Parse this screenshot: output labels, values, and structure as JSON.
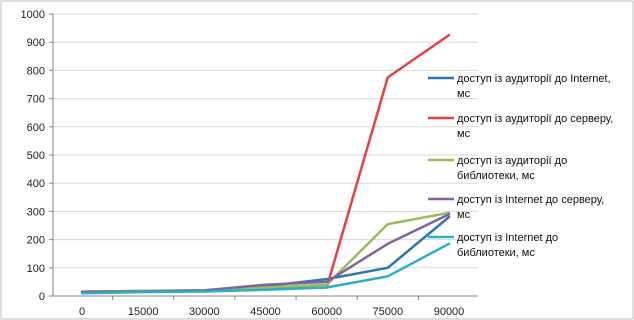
{
  "chart_data": {
    "type": "line",
    "title": "",
    "xlabel": "",
    "ylabel": "",
    "x": [
      0,
      15000,
      30000,
      45000,
      60000,
      75000,
      90000
    ],
    "x_tick_labels": [
      "0",
      "15000",
      "30000",
      "45000",
      "60000",
      "75000",
      "90000"
    ],
    "ylim": [
      0,
      1000
    ],
    "y_ticks": [
      0,
      100,
      200,
      300,
      400,
      500,
      600,
      700,
      800,
      900,
      1000
    ],
    "y_tick_labels": [
      "0",
      "100",
      "200",
      "300",
      "400",
      "500",
      "600",
      "700",
      "800",
      "900",
      "1000"
    ],
    "grid": "horizontal",
    "legend_position": "right",
    "series": [
      {
        "name": "доступ із аудиторії до Internet, мс",
        "color": "#2e75b6",
        "values": [
          15,
          18,
          20,
          35,
          60,
          100,
          280
        ]
      },
      {
        "name": "доступ із аудиторії до серверу, мс",
        "color": "#e84040",
        "values": [
          15,
          17,
          18,
          25,
          30,
          775,
          925
        ]
      },
      {
        "name": "доступ із аудиторії до библиотеки, мс",
        "color": "#9bbb59",
        "values": [
          15,
          18,
          20,
          30,
          40,
          255,
          295
        ]
      },
      {
        "name": "доступ із Internet до серверу, мс",
        "color": "#8064a2",
        "values": [
          15,
          16,
          20,
          40,
          50,
          185,
          290
        ]
      },
      {
        "name": "доступ із Internet до библиотеки, мс",
        "color": "#2ab0c5",
        "values": [
          10,
          14,
          16,
          22,
          30,
          70,
          185
        ]
      }
    ]
  }
}
